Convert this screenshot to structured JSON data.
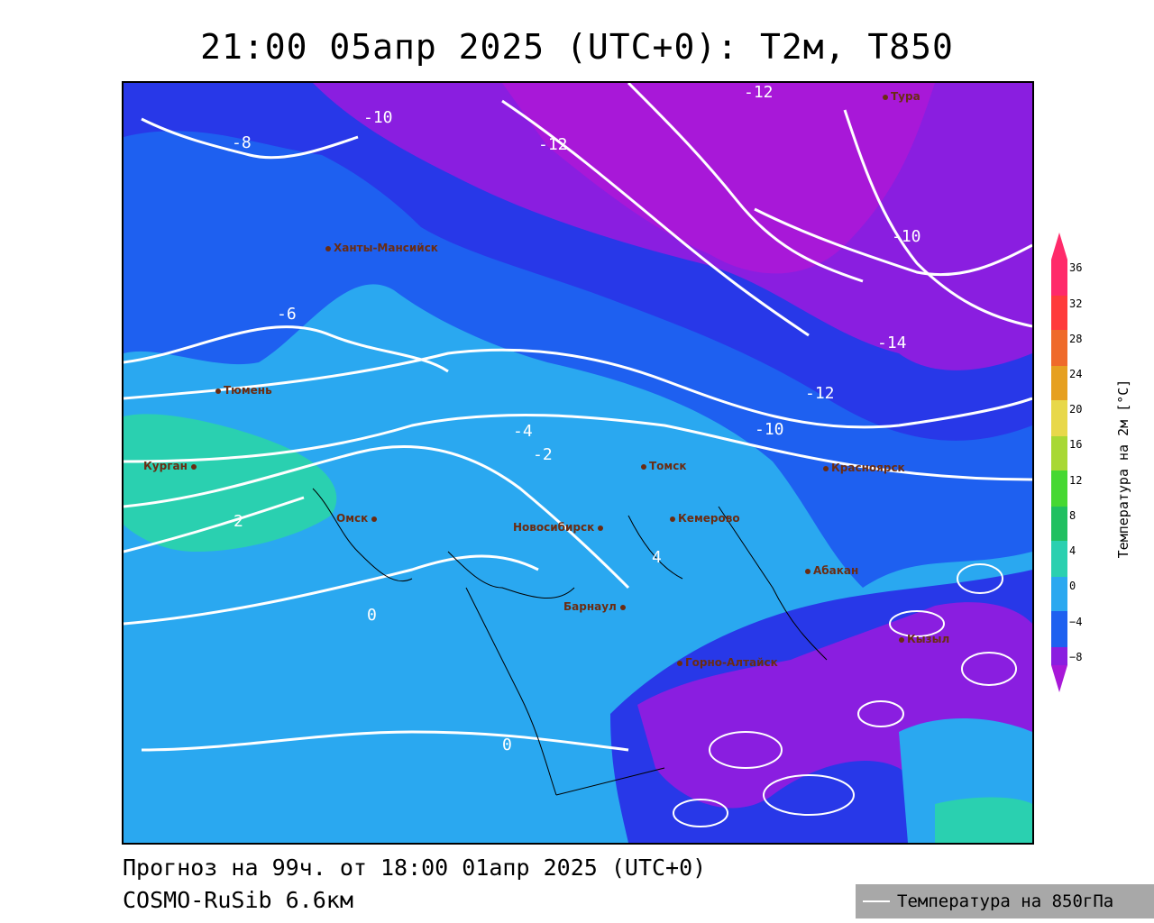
{
  "title": "21:00 05апр 2025 (UTC+0): T2м, T850",
  "forecast_line": "Прогноз на 99ч. от 18:00 01апр 2025 (UTC+0)",
  "model_line": "COSMO-RuSib 6.6км",
  "legend": {
    "label": "Температура на 850гПа"
  },
  "colorbar": {
    "label": "Температура на 2м [°C]",
    "ticks": [
      "36",
      "32",
      "28",
      "24",
      "20",
      "16",
      "12",
      "8",
      "4",
      "0",
      "−4",
      "−8"
    ],
    "colors": [
      "#ff2a6a",
      "#ff3b3b",
      "#ef6a2a",
      "#e6a020",
      "#e8d84a",
      "#a8d834",
      "#46d832",
      "#20c060",
      "#2ad0b0",
      "#2aa8f0",
      "#1e60f0",
      "#2838e8",
      "#8a1ee0",
      "#a818d8"
    ]
  },
  "cities": [
    {
      "id": "khanty",
      "name": "Ханты-Мансийск"
    },
    {
      "id": "tyumen",
      "name": "Тюмень"
    },
    {
      "id": "kurgan",
      "name": "Курган"
    },
    {
      "id": "omsk",
      "name": "Омск"
    },
    {
      "id": "novosibirsk",
      "name": "Новосибирск"
    },
    {
      "id": "tomsk",
      "name": "Томск"
    },
    {
      "id": "kemerovo",
      "name": "Кемерово"
    },
    {
      "id": "krasnoyarsk",
      "name": "Красноярск"
    },
    {
      "id": "abakan",
      "name": "Абакан"
    },
    {
      "id": "barnaul",
      "name": "Барнаул"
    },
    {
      "id": "gorno",
      "name": "Горно-Алтайск"
    },
    {
      "id": "kyzyl",
      "name": "Кызыл"
    },
    {
      "id": "tura",
      "name": "Тура"
    }
  ],
  "contour_labels": [
    "-10",
    "-12",
    "-8",
    "-12",
    "-6",
    "-10",
    "-4",
    "-2",
    "0",
    "2",
    "4",
    "-12",
    "-14",
    "-10",
    "0"
  ]
}
